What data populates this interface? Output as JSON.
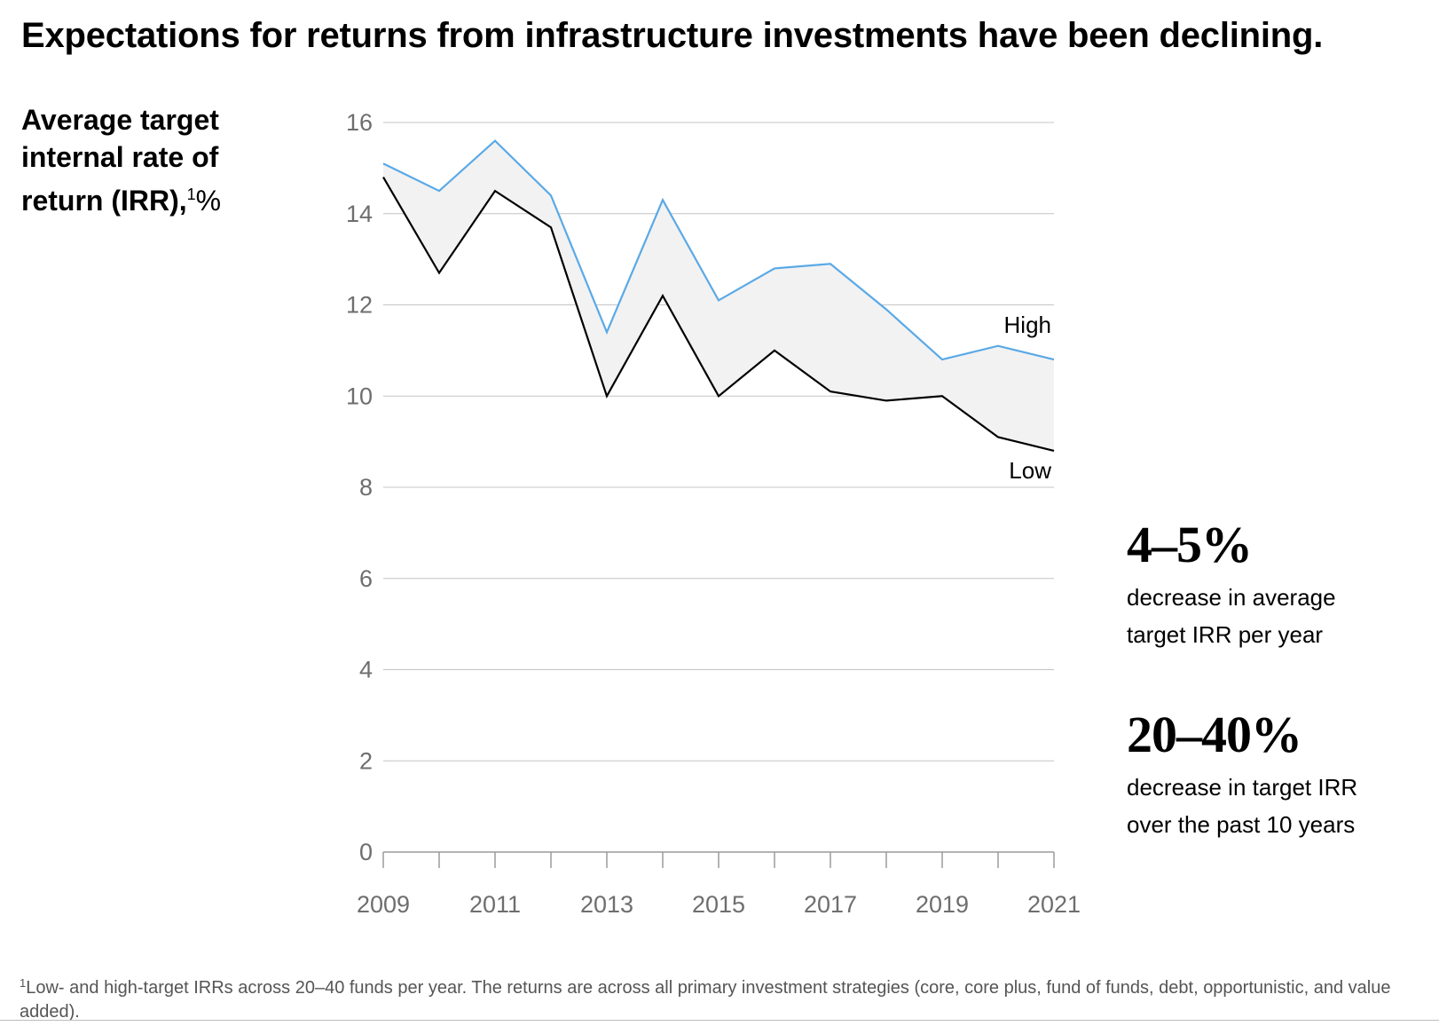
{
  "title": "Expectations for returns from infrastructure investments have been declining.",
  "y_axis_label": {
    "main": "Average target internal rate of return (IRR),",
    "footnote_mark": "1",
    "unit": "%"
  },
  "chart_data": {
    "type": "area",
    "title": "Expectations for returns from infrastructure investments have been declining.",
    "xlabel": "",
    "ylabel": "Average target internal rate of return (IRR), %",
    "x": [
      2009,
      2010,
      2011,
      2012,
      2013,
      2014,
      2015,
      2016,
      2017,
      2018,
      2019,
      2020,
      2021
    ],
    "series": [
      {
        "name": "High",
        "color": "#5aa9e6",
        "values": [
          15.1,
          14.5,
          15.6,
          14.4,
          11.4,
          14.3,
          12.1,
          12.8,
          12.9,
          11.9,
          10.8,
          11.1,
          10.8
        ]
      },
      {
        "name": "Low",
        "color": "#000000",
        "values": [
          14.8,
          12.7,
          14.5,
          13.7,
          10.0,
          12.2,
          10.0,
          11.0,
          10.1,
          9.9,
          10.0,
          9.1,
          8.8
        ]
      }
    ],
    "band_fill_color": "#f2f2f2",
    "ylim": [
      0,
      16
    ],
    "y_ticks": [
      "0",
      "2",
      "4",
      "6",
      "8",
      "10",
      "12",
      "14",
      "16"
    ],
    "x_tick_labels": [
      "2009",
      "2011",
      "2013",
      "2015",
      "2017",
      "2019",
      "2021"
    ],
    "grid": true
  },
  "stats": [
    {
      "value": "4–5%",
      "line1": "decrease in average",
      "line2": "target IRR per year"
    },
    {
      "value": "20–40%",
      "line1": "decrease in target IRR",
      "line2": "over the past 10 years"
    }
  ],
  "footnote": {
    "mark": "1",
    "text": "Low- and high-target IRRs across 20–40 funds per year. The returns are across all primary investment strategies (core, core plus, fund of funds, debt, opportunistic, and value added)."
  }
}
